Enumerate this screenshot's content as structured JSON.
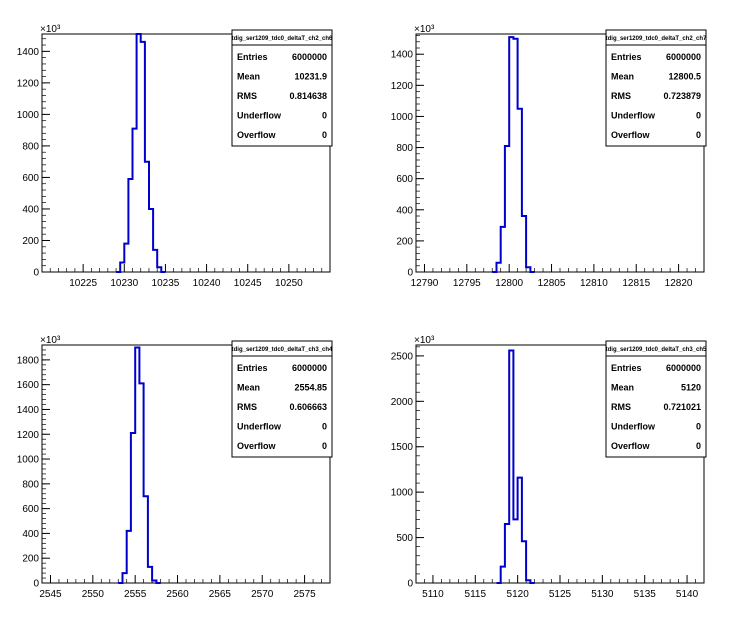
{
  "chart_data": [
    {
      "type": "histogram",
      "name": "tdig_ser1209_tdc0_deltaT_ch2_ch6",
      "xlim": [
        10220,
        10255
      ],
      "ylim": [
        0,
        1510
      ],
      "y_multiplier": "×10³",
      "yticks": [
        0,
        200,
        400,
        600,
        800,
        1000,
        1200,
        1400
      ],
      "xticks": [
        10225,
        10230,
        10235,
        10240,
        10245,
        10250
      ],
      "bin_width": 0.5,
      "bins_start": 10229.0,
      "counts": [
        0,
        60,
        180,
        590,
        910,
        1510,
        1460,
        700,
        400,
        140,
        30,
        0
      ],
      "stats": [
        {
          "label": "Entries",
          "value": "6000000"
        },
        {
          "label": "Mean",
          "value": "10231.9"
        },
        {
          "label": "RMS",
          "value": "0.814638"
        },
        {
          "label": "Underflow",
          "value": "0"
        },
        {
          "label": "Overflow",
          "value": "0"
        }
      ]
    },
    {
      "type": "histogram",
      "name": "tdig_ser1209_tdc0_deltaT_ch2_ch7",
      "xlim": [
        12789,
        12823
      ],
      "ylim": [
        0,
        1530
      ],
      "y_multiplier": "×10³",
      "yticks": [
        0,
        200,
        400,
        600,
        800,
        1000,
        1200,
        1400
      ],
      "xticks": [
        12790,
        12795,
        12800,
        12805,
        12810,
        12815,
        12820
      ],
      "bin_width": 0.5,
      "bins_start": 12798.0,
      "counts": [
        0,
        60,
        290,
        810,
        1510,
        1500,
        1050,
        360,
        30,
        0
      ],
      "stats": [
        {
          "label": "Entries",
          "value": "6000000"
        },
        {
          "label": "Mean",
          "value": "12800.5"
        },
        {
          "label": "RMS",
          "value": "0.723879"
        },
        {
          "label": "Underflow",
          "value": "0"
        },
        {
          "label": "Overflow",
          "value": "0"
        }
      ]
    },
    {
      "type": "histogram",
      "name": "tdig_ser1209_tdc0_deltaT_ch3_ch4",
      "xlim": [
        2544,
        2578
      ],
      "ylim": [
        0,
        1920
      ],
      "y_multiplier": "×10³",
      "yticks": [
        0,
        200,
        400,
        600,
        800,
        1000,
        1200,
        1400,
        1600,
        1800
      ],
      "xticks": [
        2545,
        2550,
        2555,
        2560,
        2565,
        2570,
        2575
      ],
      "bin_width": 0.5,
      "bins_start": 2553.0,
      "counts": [
        0,
        80,
        420,
        1210,
        1900,
        1610,
        700,
        130,
        20,
        0
      ],
      "stats": [
        {
          "label": "Entries",
          "value": "6000000"
        },
        {
          "label": "Mean",
          "value": "2554.85"
        },
        {
          "label": "RMS",
          "value": "0.606663"
        },
        {
          "label": "Underflow",
          "value": "0"
        },
        {
          "label": "Overflow",
          "value": "0"
        }
      ]
    },
    {
      "type": "histogram",
      "name": "tdig_ser1209_tdc0_deltaT_ch3_ch5",
      "xlim": [
        5108,
        5142
      ],
      "ylim": [
        0,
        2620
      ],
      "y_multiplier": "×10³",
      "yticks": [
        0,
        500,
        1000,
        1500,
        2000,
        2500
      ],
      "xticks": [
        5110,
        5115,
        5120,
        5125,
        5130,
        5135,
        5140
      ],
      "bin_width": 0.5,
      "bins_start": 5117.5,
      "counts": [
        0,
        180,
        650,
        2560,
        700,
        1160,
        460,
        30,
        0
      ],
      "stats": [
        {
          "label": "Entries",
          "value": "6000000"
        },
        {
          "label": "Mean",
          "value": "5120"
        },
        {
          "label": "RMS",
          "value": "0.721021"
        },
        {
          "label": "Underflow",
          "value": "0"
        },
        {
          "label": "Overflow",
          "value": "0"
        }
      ]
    }
  ],
  "colors": {
    "histogram": "#0000cc",
    "axis": "#000000",
    "stats_border": "#000000",
    "background": "#ffffff"
  }
}
